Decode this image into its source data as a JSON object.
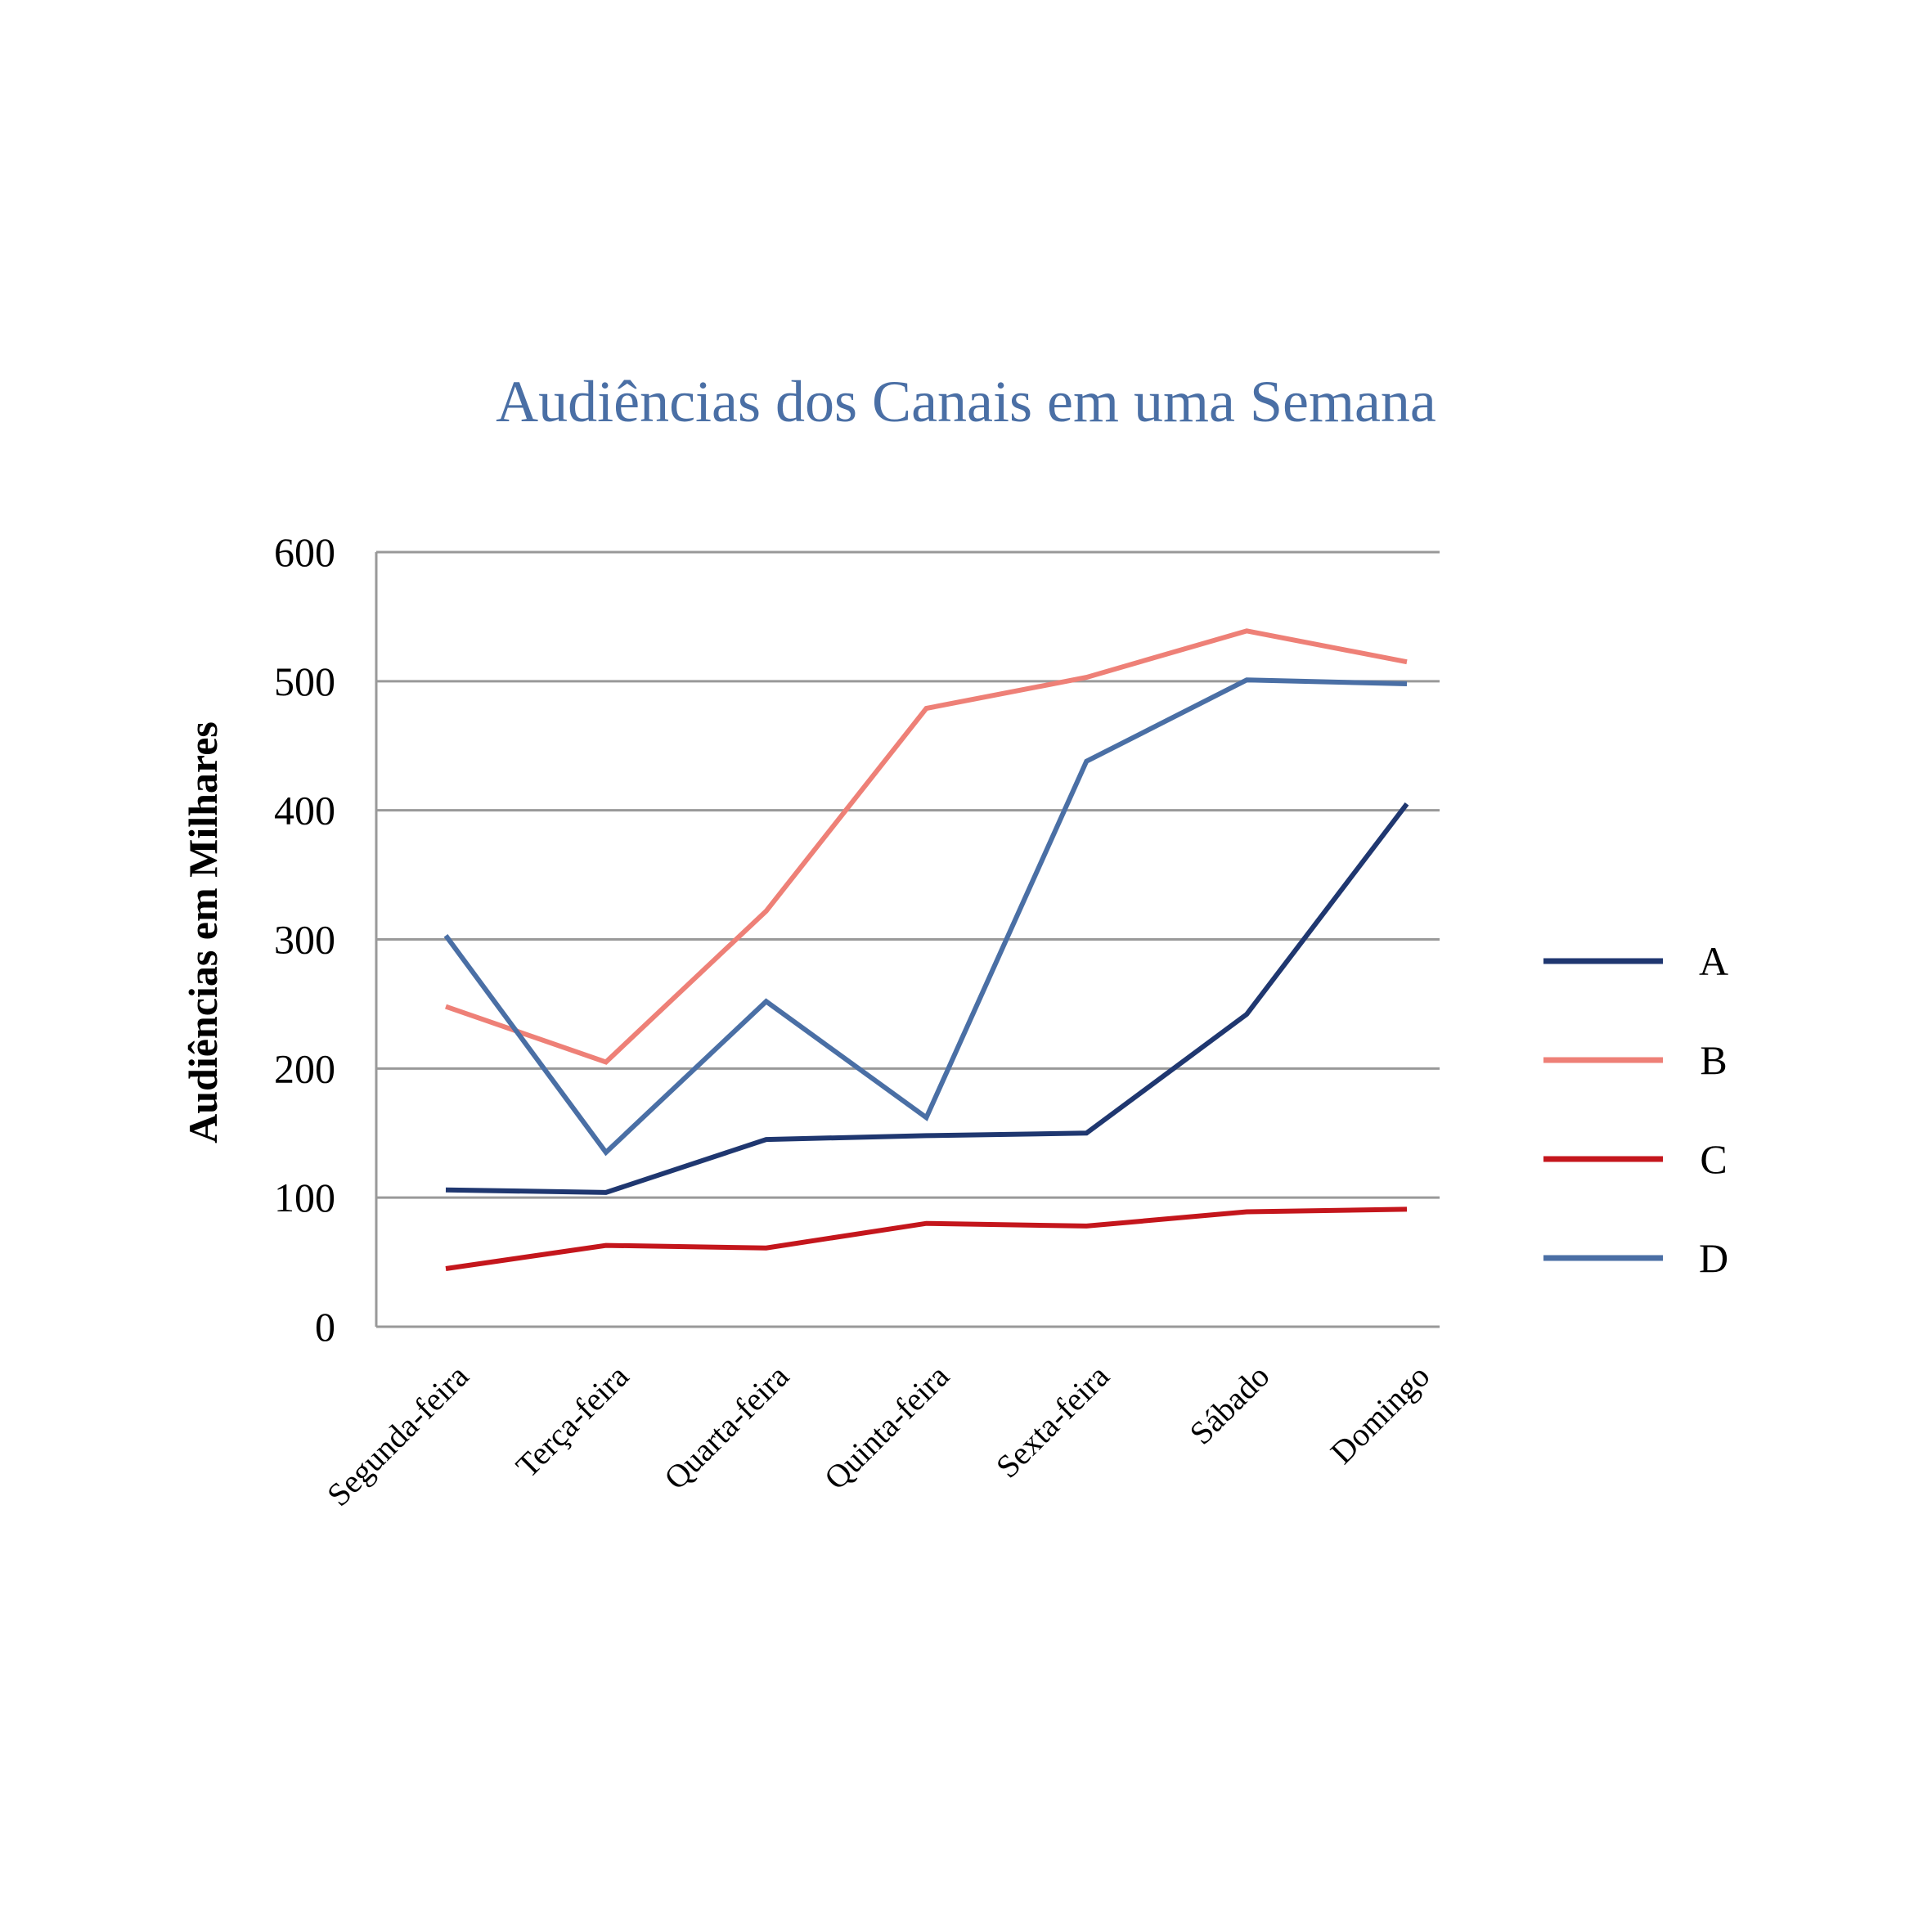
{
  "chart_data": {
    "type": "line",
    "title": "Audiências dos Canais em uma Semana",
    "xlabel": "",
    "ylabel": "Audiências em Milhares",
    "ylim": [
      0,
      600
    ],
    "yticks": [
      "0",
      "100",
      "200",
      "300",
      "400",
      "500",
      "600"
    ],
    "grid": true,
    "legend_position": "right",
    "categories": [
      "Segunda-feira",
      "Terça-feira",
      "Quarta-feira",
      "Quinta-feira",
      "Sexta-feira",
      "Sábado",
      "Domingo"
    ],
    "series": [
      {
        "name": "A",
        "color": "#1f3770",
        "values": [
          106,
          104,
          145,
          148,
          150,
          242,
          405
        ]
      },
      {
        "name": "B",
        "color": "#ee8077",
        "values": [
          248,
          205,
          322,
          479,
          503,
          539,
          515
        ]
      },
      {
        "name": "C",
        "color": "#c4161c",
        "values": [
          45,
          63,
          61,
          80,
          78,
          89,
          91
        ]
      },
      {
        "name": "D",
        "color": "#4a6fa5",
        "values": [
          303,
          135,
          252,
          162,
          438,
          501,
          498
        ]
      }
    ],
    "colors": {
      "title": "#4a6fa5",
      "grid": "#999999",
      "axis": "#999999"
    }
  }
}
